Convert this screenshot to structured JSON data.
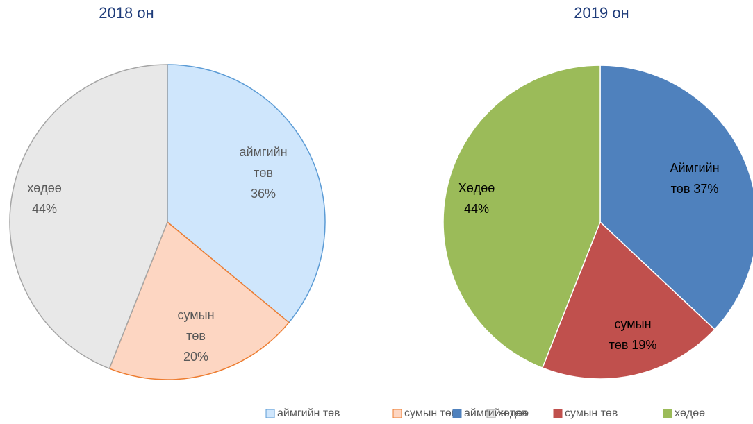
{
  "chart_data": [
    {
      "type": "pie",
      "title": "2018 он",
      "categories": [
        "аймгийн төв",
        "сумын төв",
        "хөдөө"
      ],
      "values": [
        36,
        20,
        44
      ],
      "value_labels": [
        [
          "аймгийн",
          "төв",
          "36%"
        ],
        [
          "сумын",
          "төв",
          "20%"
        ],
        [
          "хөдөө",
          "44%"
        ]
      ],
      "colors": [
        "#cfe6fc",
        "#fdd6c2",
        "#e8e8e8"
      ],
      "edge_colors": [
        "#5b9bd5",
        "#ed7d31",
        "#a5a5a5"
      ],
      "legend": "bottom"
    },
    {
      "type": "pie",
      "title": "2019 он",
      "categories": [
        "аймгийн төв",
        "сумын төв",
        "хөдөө"
      ],
      "values": [
        37,
        19,
        44
      ],
      "value_labels": [
        [
          "Аймгийн",
          "төв 37%"
        ],
        [
          "сумын",
          "төв 19%"
        ],
        [
          "Хөдөө",
          "44%"
        ]
      ],
      "colors": [
        "#4f81bd",
        "#c0504d",
        "#9bbb59"
      ],
      "edge_colors": [
        "#ffffff",
        "#ffffff",
        "#ffffff"
      ],
      "legend": "bottom"
    }
  ]
}
